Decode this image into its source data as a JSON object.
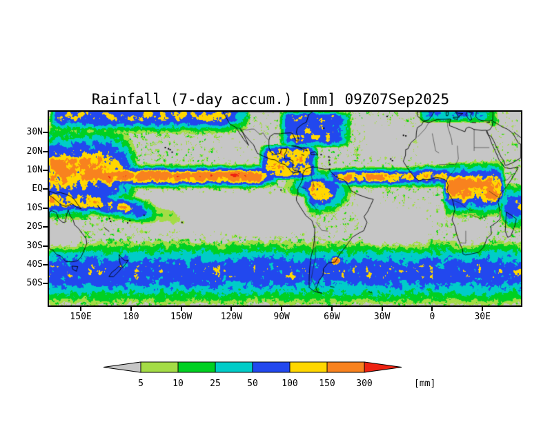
{
  "title": "Rainfall (7-day accum.) [mm] 09Z07Sep2025",
  "axes": {
    "lat_ticks": [
      {
        "label": "30N",
        "deg": 30
      },
      {
        "label": "20N",
        "deg": 20
      },
      {
        "label": "10N",
        "deg": 10
      },
      {
        "label": "EQ",
        "deg": 0
      },
      {
        "label": "10S",
        "deg": -10
      },
      {
        "label": "20S",
        "deg": -20
      },
      {
        "label": "30S",
        "deg": -30
      },
      {
        "label": "40S",
        "deg": -40
      },
      {
        "label": "50S",
        "deg": -50
      }
    ],
    "lon_ticks": [
      {
        "label": "150E",
        "deg": 150
      },
      {
        "label": "180",
        "deg": 180
      },
      {
        "label": "150W",
        "deg": 210
      },
      {
        "label": "120W",
        "deg": 240
      },
      {
        "label": "90W",
        "deg": 270
      },
      {
        "label": "60W",
        "deg": 300
      },
      {
        "label": "30W",
        "deg": 330
      },
      {
        "label": "0",
        "deg": 360
      },
      {
        "label": "30E",
        "deg": 390
      }
    ]
  },
  "legend": {
    "thresholds": [
      "5",
      "10",
      "25",
      "50",
      "100",
      "150",
      "300"
    ],
    "unit": "[mm]"
  },
  "chart_data": {
    "type": "heatmap",
    "title": "Rainfall (7-day accum.) [mm] 09Z07Sep2025",
    "variable": "rainfall, 7-day accumulation",
    "unit": "mm",
    "valid_time": "09Z07Sep2025",
    "x_axis": {
      "tick_labels": [
        "150E",
        "180",
        "150W",
        "120W",
        "90W",
        "60W",
        "30W",
        "0",
        "30E"
      ],
      "range_deg_east": [
        131,
        413
      ]
    },
    "y_axis": {
      "tick_labels": [
        "30N",
        "20N",
        "10N",
        "EQ",
        "10S",
        "20S",
        "30S",
        "40S",
        "50S"
      ],
      "range_deg_north": [
        -61.5,
        41
      ]
    },
    "colorbar": {
      "thresholds_mm": [
        5,
        10,
        25,
        50,
        100,
        150,
        300
      ],
      "bin_colors": [
        "#c6c6c6",
        "#a4dc46",
        "#00d022",
        "#00ccc8",
        "#2248ee",
        "#ffd700",
        "#f8821e",
        "#ee2211"
      ],
      "bin_labels": [
        "<5",
        "5-10",
        "10-25",
        "25-50",
        "50-100",
        "100-150",
        "150-300",
        ">300"
      ]
    },
    "map_background_color": "#c6c6c6",
    "grid": false,
    "legend_position": "bottom",
    "notable_features": [
      "Continuous heavy ITCZ rain band near 5-10N across the Pacific with 150-300+ mm (orange/red) cores between about 150W and 90W",
      "Second ITCZ rain band near 5-8N across the tropical Atlantic",
      "Widespread heavy rain (50-300 mm) over equatorial Africa and the northwest Amazon / Colombia / Central America",
      "Large dry (gray, <5 mm) areas over the southeast Pacific, subtropical South Atlantic, the Sahara and interior Australia",
      "Patchy 5-100 mm storm-track rainfall across the Southern Ocean between about 30S and 55S",
      "Isolated 150-300 mm (orange) maximum near 60W, 38S over Argentina",
      "Active rain region over the far western Pacific at the left edge of the map"
    ]
  }
}
